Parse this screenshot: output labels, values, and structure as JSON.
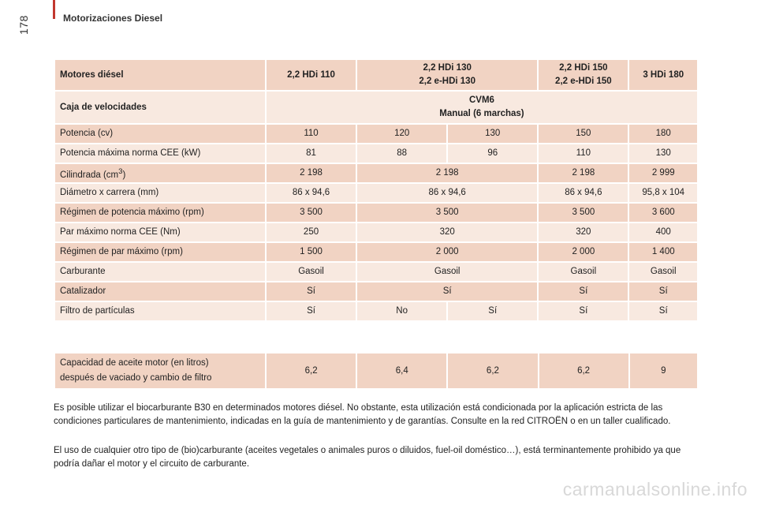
{
  "header": {
    "section_title": "Motorizaciones Diesel",
    "page_number": "178"
  },
  "table": {
    "header_label": "Motores diésel",
    "engines": [
      {
        "line1": "2,2 HDi 110",
        "line2": ""
      },
      {
        "line1": "2,2 HDi 130",
        "line2": "2,2 e-HDi 130"
      },
      {
        "line1": "2,2 HDi 150",
        "line2": "2,2 e-HDi 150"
      },
      {
        "line1": "3 HDi 180",
        "line2": ""
      }
    ],
    "gearbox_label": "Caja de velocidades",
    "gearbox_line1": "CVM6",
    "gearbox_line2": "Manual (6 marchas)",
    "rows": [
      {
        "label": "Potencia (cv)",
        "v": [
          "110",
          "120",
          "130",
          "150",
          "180"
        ]
      },
      {
        "label": "Potencia máxima norma CEE (kW)",
        "v": [
          "81",
          "88",
          "96",
          "110",
          "130"
        ]
      },
      {
        "label_main": "Cilindrada (cm",
        "label_sup": "3",
        "label_end": ")",
        "v": [
          "2 198",
          "2 198",
          "2 198",
          "2 999"
        ]
      },
      {
        "label": "Diámetro x carrera (mm)",
        "v": [
          "86 x 94,6",
          "86 x 94,6",
          "86 x 94,6",
          "95,8 x 104"
        ]
      },
      {
        "label": "Régimen de potencia máximo (rpm)",
        "v": [
          "3 500",
          "3 500",
          "3 500",
          "3 600"
        ]
      },
      {
        "label": "Par máximo norma CEE (Nm)",
        "v": [
          "250",
          "320",
          "320",
          "400"
        ]
      },
      {
        "label": "Régimen de par máximo (rpm)",
        "v": [
          "1 500",
          "2 000",
          "2 000",
          "1 400"
        ]
      },
      {
        "label": "Carburante",
        "v": [
          "Gasoil",
          "Gasoil",
          "Gasoil",
          "Gasoil"
        ]
      },
      {
        "label": "Catalizador",
        "v": [
          "Sí",
          "Sí",
          "Sí",
          "Sí"
        ]
      },
      {
        "label": "Filtro de partículas",
        "v": [
          "Sí",
          "No",
          "Sí",
          "Sí",
          "Sí"
        ]
      }
    ]
  },
  "oil": {
    "label_line1": "Capacidad de aceite motor (en litros)",
    "label_line2": "después de vaciado y cambio de filtro",
    "v": [
      "6,2",
      "6,4",
      "6,2",
      "6,2",
      "9"
    ]
  },
  "notes": {
    "p1": "Es posible utilizar el biocarburante B30 en determinados motores diésel. No obstante, esta utilización está condicionada por la aplicación estricta de las condiciones particulares de mantenimiento, indicadas en la guía de mantenimiento y de garantías. Consulte en la red CITROËN o en un taller cualificado.",
    "p2": "El uso de cualquier otro tipo de (bio)carburante (aceites vegetales o animales puros o diluidos, fuel-oil doméstico…), está terminantemente prohibido ya que podría dañar el motor y el circuito de carburante."
  },
  "watermark": "carmanualsonline.info"
}
